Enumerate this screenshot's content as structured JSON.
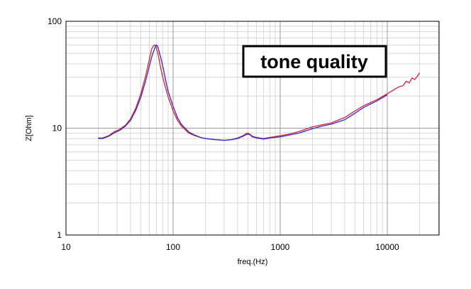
{
  "chart_data": {
    "type": "line",
    "title": "",
    "xlabel": "freq.(Hz)",
    "ylabel": "Z[Ohm]",
    "xscale": "log",
    "yscale": "log",
    "xlim": [
      10,
      35000
    ],
    "ylim": [
      1,
      100
    ],
    "x_ticks": [
      "10",
      "100",
      "1000",
      "10000"
    ],
    "y_ticks": [
      "1",
      "10",
      "100"
    ],
    "grid": true,
    "annotation": "tone quality",
    "colors": {
      "series_red": "#e0203a",
      "series_blue": "#2a2ad8",
      "grid_minor": "#d8d8d8",
      "grid_major": "#9a9a9a"
    },
    "series": [
      {
        "color": "#e0203a",
        "x": [
          20,
          22,
          25,
          28,
          32,
          36,
          40,
          45,
          50,
          55,
          60,
          63,
          66,
          68,
          70,
          73,
          76,
          80,
          85,
          90,
          100,
          110,
          120,
          140,
          160,
          180,
          200,
          250,
          300,
          350,
          400,
          450,
          480,
          500,
          520,
          550,
          600,
          700,
          800,
          1000,
          1200,
          1500,
          2000,
          2500,
          3000,
          4000,
          5000,
          6000,
          8000,
          10000,
          12000,
          13000,
          14000,
          15000,
          16000,
          17000,
          18000,
          19000,
          20000
        ],
        "y": [
          8.1,
          8.1,
          8.5,
          9.2,
          9.8,
          10.7,
          12.2,
          15.5,
          21,
          30,
          44,
          55,
          59.5,
          60,
          56,
          47,
          38,
          30,
          24,
          19.5,
          14.5,
          11.8,
          10.4,
          9.0,
          8.5,
          8.2,
          8.0,
          7.8,
          7.7,
          7.8,
          8.1,
          8.5,
          8.9,
          9.0,
          8.8,
          8.4,
          8.2,
          8.0,
          8.2,
          8.5,
          8.8,
          9.3,
          10.3,
          10.8,
          11.2,
          12.6,
          14.5,
          16.2,
          18.5,
          21,
          23.5,
          24.5,
          25,
          27.5,
          26.5,
          29.5,
          28.5,
          30.5,
          33
        ]
      },
      {
        "color": "#2a2ad8",
        "x": [
          20,
          22,
          25,
          28,
          32,
          36,
          40,
          45,
          50,
          55,
          60,
          63,
          66,
          68,
          70,
          72,
          74,
          78,
          82,
          86,
          90,
          100,
          110,
          120,
          140,
          160,
          180,
          200,
          250,
          300,
          350,
          400,
          450,
          480,
          500,
          520,
          550,
          600,
          700,
          800,
          1000,
          1200,
          1500,
          2000,
          2500,
          3000,
          4000,
          5000,
          6000,
          8000,
          10000
        ],
        "y": [
          8.0,
          8.0,
          8.4,
          9.0,
          9.6,
          10.5,
          11.8,
          14.8,
          19.5,
          27,
          38,
          46,
          53,
          57,
          60,
          58,
          52,
          43,
          34,
          27,
          22,
          16,
          12.5,
          10.8,
          9.2,
          8.6,
          8.2,
          8.0,
          7.8,
          7.7,
          7.8,
          8.0,
          8.4,
          8.7,
          8.8,
          8.7,
          8.3,
          8.1,
          7.9,
          8.1,
          8.3,
          8.6,
          9.0,
          9.9,
          10.5,
          10.9,
          12.0,
          13.8,
          15.6,
          18,
          20.5
        ]
      }
    ]
  }
}
